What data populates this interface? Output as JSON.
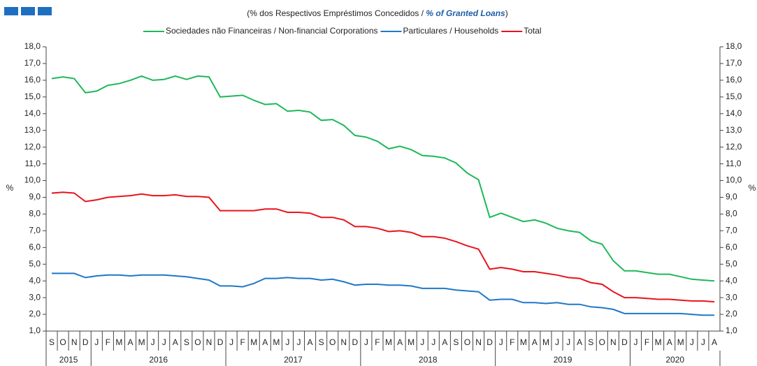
{
  "chart_data": {
    "type": "line",
    "subtitle": [
      "(% dos Respectivos  Empréstimos Concedidos  / ",
      "% of Granted Loans",
      ")"
    ],
    "ylabel": "%",
    "categories": [
      "S",
      "O",
      "N",
      "D",
      "J",
      "F",
      "M",
      "A",
      "M",
      "J",
      "J",
      "A",
      "S",
      "O",
      "N",
      "D",
      "J",
      "F",
      "M",
      "A",
      "M",
      "J",
      "J",
      "A",
      "S",
      "O",
      "N",
      "D",
      "J",
      "F",
      "M",
      "A",
      "M",
      "J",
      "J",
      "A",
      "S",
      "O",
      "N",
      "D",
      "J",
      "F",
      "M",
      "A",
      "M",
      "J",
      "J",
      "A",
      "S",
      "O",
      "N",
      "D",
      "J",
      "F",
      "M",
      "A",
      "M",
      "J",
      "J",
      "A"
    ],
    "years": [
      "2015",
      "2015",
      "2015",
      "2015",
      "2016",
      "2016",
      "2016",
      "2016",
      "2016",
      "2016",
      "2016",
      "2016",
      "2016",
      "2016",
      "2016",
      "2016",
      "2017",
      "2017",
      "2017",
      "2017",
      "2017",
      "2017",
      "2017",
      "2017",
      "2017",
      "2017",
      "2017",
      "2017",
      "2018",
      "2018",
      "2018",
      "2018",
      "2018",
      "2018",
      "2018",
      "2018",
      "2018",
      "2018",
      "2018",
      "2018",
      "2019",
      "2019",
      "2019",
      "2019",
      "2019",
      "2019",
      "2019",
      "2019",
      "2019",
      "2019",
      "2019",
      "2019",
      "2020",
      "2020",
      "2020",
      "2020",
      "2020",
      "2020",
      "2020",
      "2020"
    ],
    "series": [
      {
        "name": "Sociedades não Financeiras / Non-financial Corporations",
        "color": "#1fb85a",
        "values": [
          16.1,
          16.2,
          16.1,
          15.25,
          15.35,
          15.7,
          15.8,
          16.0,
          16.25,
          16.0,
          16.05,
          16.25,
          16.05,
          16.25,
          16.2,
          15.0,
          15.05,
          15.1,
          14.8,
          14.55,
          14.6,
          14.15,
          14.2,
          14.1,
          13.6,
          13.65,
          13.3,
          12.7,
          12.6,
          12.35,
          11.9,
          12.05,
          11.85,
          11.5,
          11.45,
          11.35,
          11.05,
          10.45,
          10.05,
          7.8,
          8.05,
          7.8,
          7.55,
          7.65,
          7.45,
          7.15,
          7.0,
          6.9,
          6.4,
          6.2,
          5.2,
          4.6,
          4.6,
          4.5,
          4.4,
          4.4,
          4.25,
          4.1,
          4.05,
          4.0
        ]
      },
      {
        "name": "Particulares / Households",
        "color": "#1f78c8",
        "values": [
          4.45,
          4.45,
          4.45,
          4.2,
          4.3,
          4.35,
          4.35,
          4.3,
          4.35,
          4.35,
          4.35,
          4.3,
          4.25,
          4.15,
          4.05,
          3.7,
          3.7,
          3.65,
          3.85,
          4.15,
          4.15,
          4.2,
          4.15,
          4.15,
          4.05,
          4.1,
          3.95,
          3.75,
          3.8,
          3.8,
          3.75,
          3.75,
          3.7,
          3.55,
          3.55,
          3.55,
          3.45,
          3.4,
          3.35,
          2.85,
          2.9,
          2.9,
          2.7,
          2.7,
          2.65,
          2.7,
          2.6,
          2.6,
          2.45,
          2.4,
          2.3,
          2.05,
          2.05,
          2.05,
          2.05,
          2.05,
          2.05,
          2.0,
          1.95,
          1.95
        ]
      },
      {
        "name": "Total",
        "color": "#e8141c",
        "values": [
          9.25,
          9.3,
          9.25,
          8.75,
          8.85,
          9.0,
          9.05,
          9.1,
          9.2,
          9.1,
          9.1,
          9.15,
          9.05,
          9.05,
          9.0,
          8.2,
          8.2,
          8.2,
          8.2,
          8.3,
          8.3,
          8.1,
          8.1,
          8.05,
          7.8,
          7.8,
          7.65,
          7.25,
          7.25,
          7.15,
          6.95,
          7.0,
          6.9,
          6.65,
          6.65,
          6.55,
          6.35,
          6.1,
          5.9,
          4.7,
          4.8,
          4.7,
          4.55,
          4.55,
          4.45,
          4.35,
          4.2,
          4.15,
          3.9,
          3.8,
          3.35,
          3.0,
          3.0,
          2.95,
          2.9,
          2.9,
          2.85,
          2.8,
          2.8,
          2.75
        ]
      }
    ],
    "ylim": [
      1,
      18
    ],
    "yticks": [
      {
        "value": 1,
        "label": "1,0"
      },
      {
        "value": 2,
        "label": "2,0"
      },
      {
        "value": 3,
        "label": "3,0"
      },
      {
        "value": 4,
        "label": "4,0"
      },
      {
        "value": 5,
        "label": "5,0"
      },
      {
        "value": 6,
        "label": "6,0"
      },
      {
        "value": 7,
        "label": "7,0"
      },
      {
        "value": 8,
        "label": "8,0"
      },
      {
        "value": 9,
        "label": "9,0"
      },
      {
        "value": 10,
        "label": "10,0"
      },
      {
        "value": 11,
        "label": "11,0"
      },
      {
        "value": 12,
        "label": "12,0"
      },
      {
        "value": 13,
        "label": "13,0"
      },
      {
        "value": 14,
        "label": "14,0"
      },
      {
        "value": 15,
        "label": "15,0"
      },
      {
        "value": 16,
        "label": "16,0"
      },
      {
        "value": 17,
        "label": "17,0"
      },
      {
        "value": 18,
        "label": "18,0"
      }
    ]
  }
}
